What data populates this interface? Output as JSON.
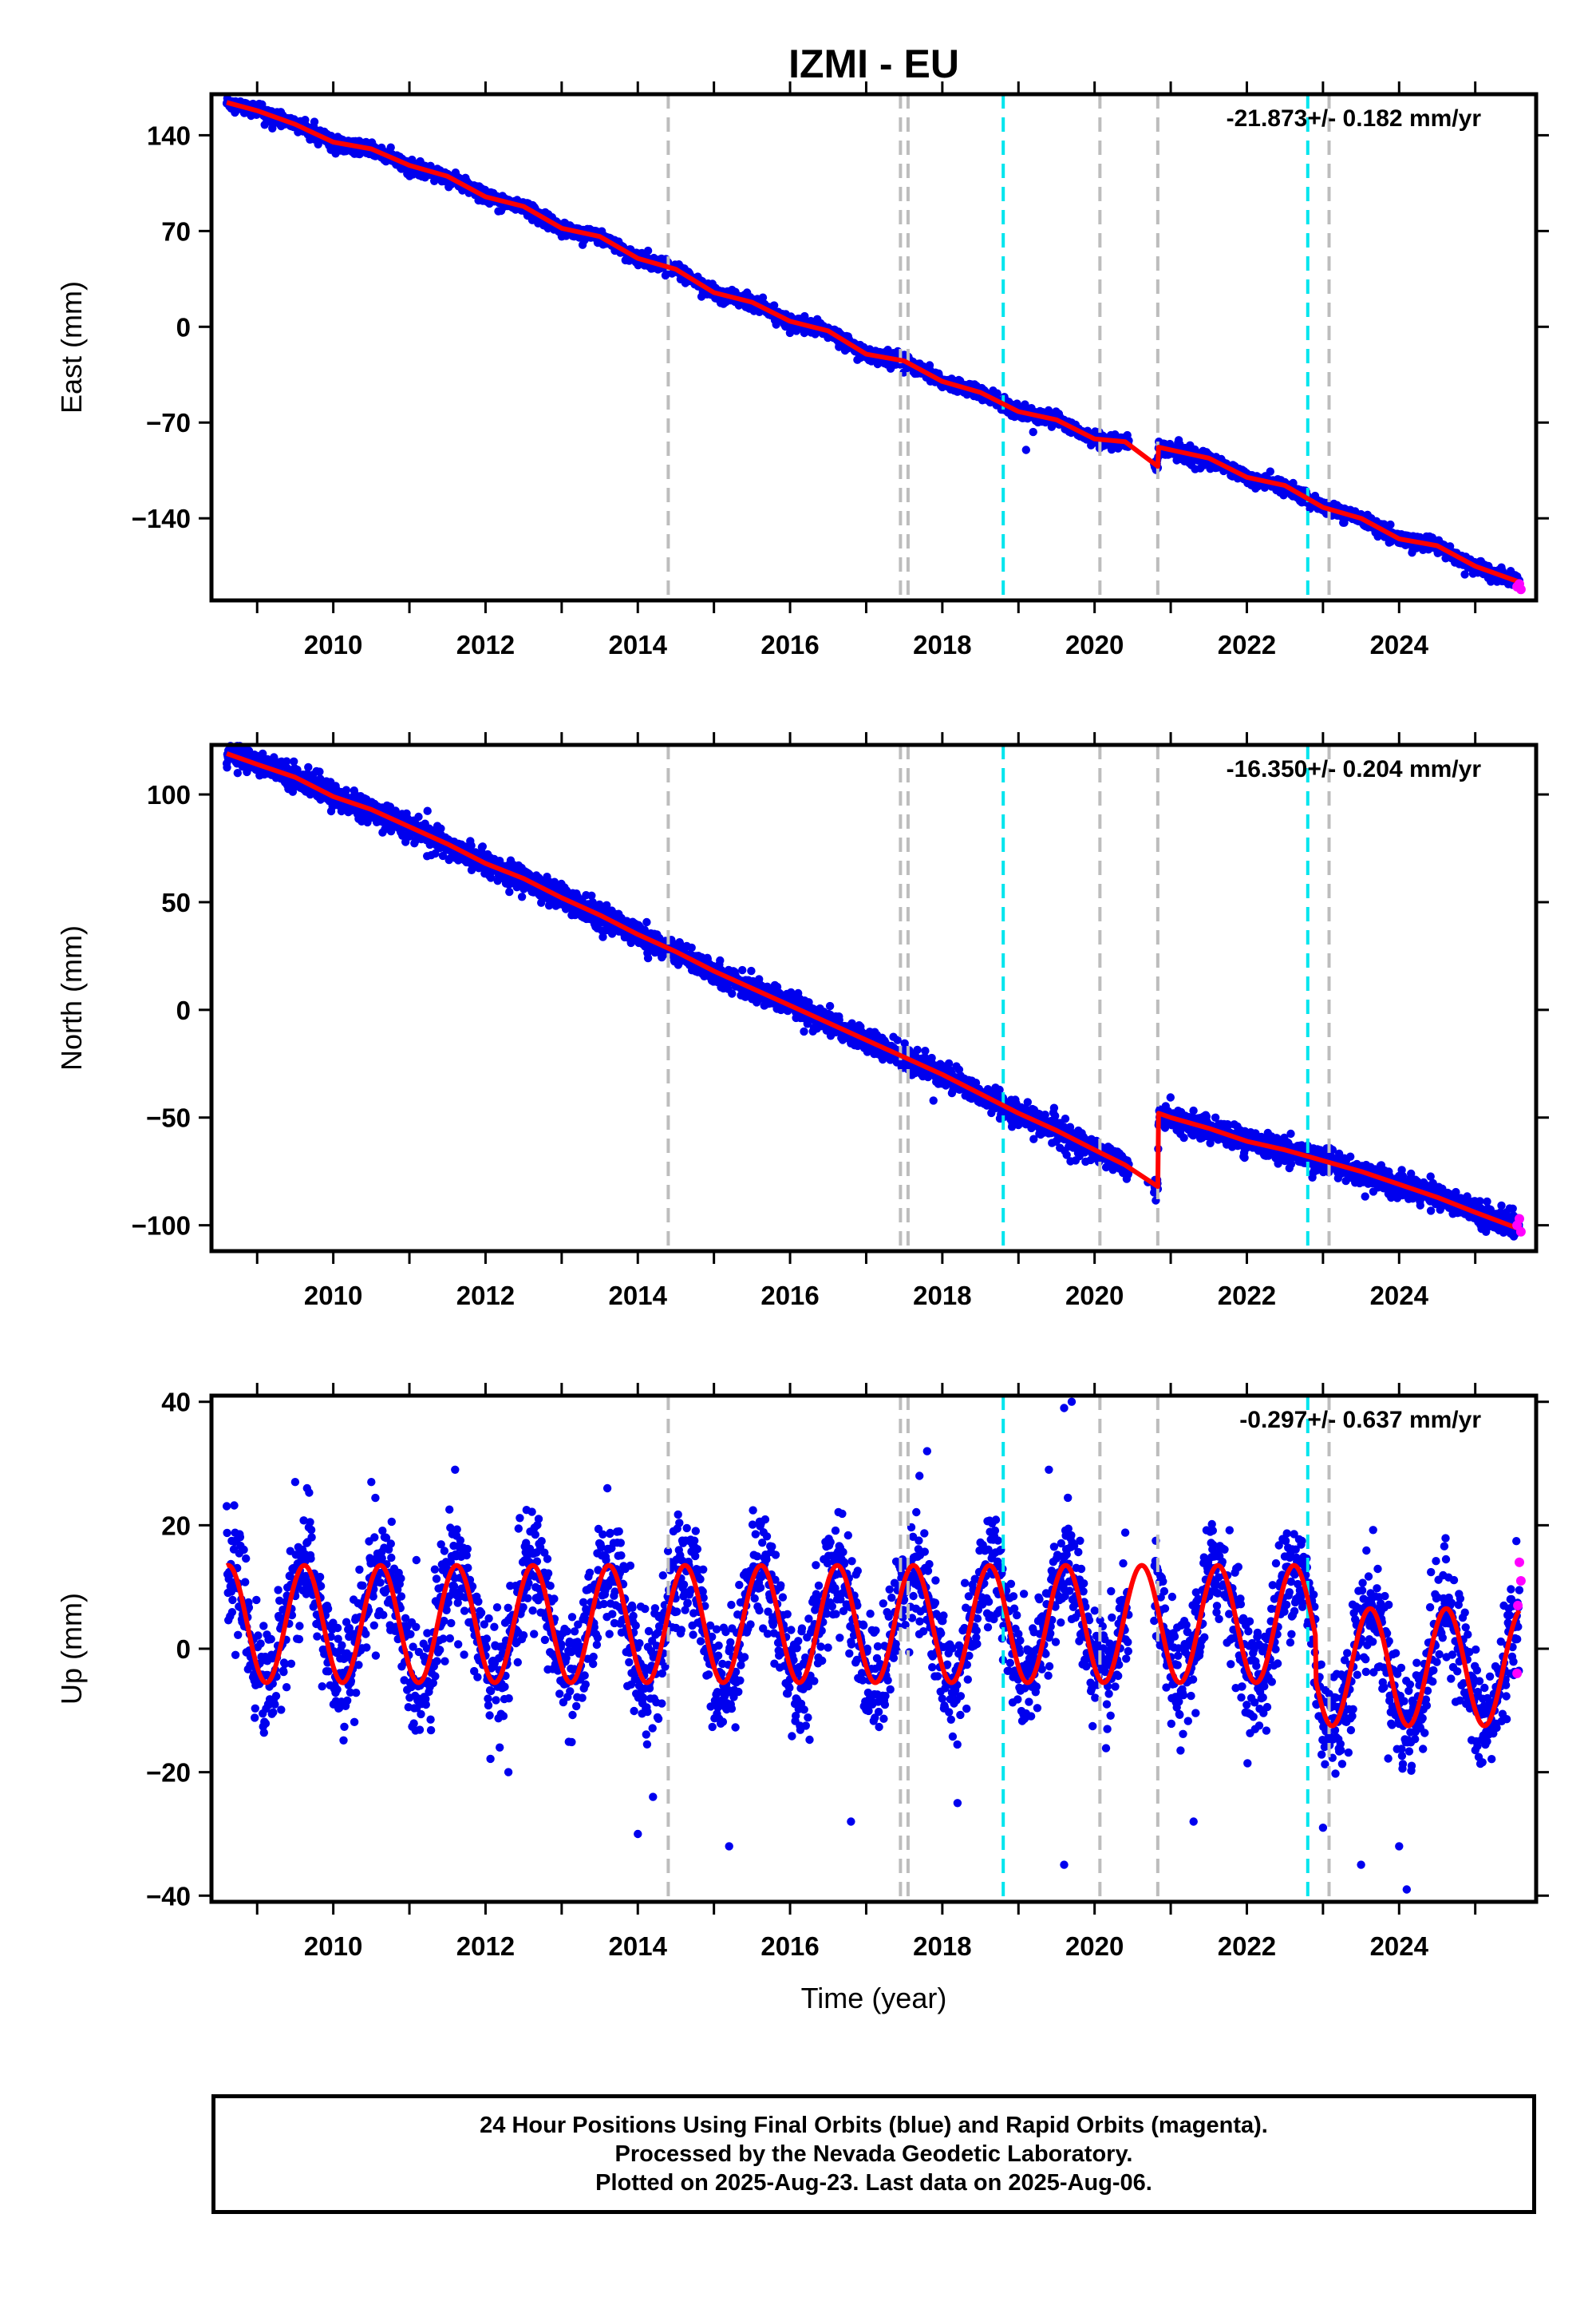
{
  "title": "IZMI - EU",
  "caption": {
    "line1": "24 Hour Positions Using Final Orbits (blue) and Rapid Orbits (magenta).",
    "line2": "Processed by the Nevada Geodetic Laboratory.",
    "line3": "Plotted on 2025-Aug-23. Last data on 2025-Aug-06."
  },
  "colors": {
    "final": "#0000ee",
    "rapid": "#ff00ff",
    "model": "#ff0000",
    "event_gray": "#bdbdbd",
    "event_cyan": "#00e5ee"
  },
  "events": {
    "gray": [
      2014.4,
      2017.45,
      2017.55,
      2020.07,
      2020.83,
      2023.08
    ],
    "cyan": [
      2018.8,
      2022.8
    ]
  },
  "chart_data": [
    {
      "type": "scatter",
      "name_key": "east",
      "ylabel": "East (mm)",
      "xlabel": "",
      "rate": "-21.873+/- 0.182 mm/yr",
      "xlim": [
        2008.4,
        2025.8
      ],
      "ylim": [
        -200,
        170
      ],
      "yticks": [
        140,
        70,
        0,
        -70,
        -140
      ],
      "xticks": [
        2010,
        2012,
        2014,
        2016,
        2018,
        2020,
        2022,
        2024
      ],
      "model": [
        [
          2008.6,
          164
        ],
        [
          2009.0,
          158
        ],
        [
          2009.5,
          148
        ],
        [
          2010.0,
          135
        ],
        [
          2010.5,
          130
        ],
        [
          2011.0,
          118
        ],
        [
          2011.5,
          110
        ],
        [
          2012.0,
          95
        ],
        [
          2012.5,
          88
        ],
        [
          2013.0,
          72
        ],
        [
          2013.5,
          66
        ],
        [
          2014.0,
          50
        ],
        [
          2014.5,
          42
        ],
        [
          2015.0,
          25
        ],
        [
          2015.5,
          18
        ],
        [
          2016.0,
          4
        ],
        [
          2016.5,
          -3
        ],
        [
          2017.0,
          -20
        ],
        [
          2017.5,
          -25
        ],
        [
          2018.0,
          -40
        ],
        [
          2018.5,
          -48
        ],
        [
          2019.0,
          -62
        ],
        [
          2019.5,
          -68
        ],
        [
          2020.0,
          -82
        ],
        [
          2020.4,
          -84
        ],
        [
          2020.83,
          -102
        ],
        [
          2020.84,
          -88
        ],
        [
          2021.0,
          -90
        ],
        [
          2021.5,
          -96
        ],
        [
          2022.0,
          -110
        ],
        [
          2022.5,
          -116
        ],
        [
          2023.0,
          -132
        ],
        [
          2023.5,
          -140
        ],
        [
          2024.0,
          -155
        ],
        [
          2024.5,
          -160
        ],
        [
          2025.0,
          -175
        ],
        [
          2025.6,
          -187
        ]
      ],
      "outliers": [
        [
          2019.1,
          -90
        ],
        [
          2009.2,
          145
        ],
        [
          2012.6,
          80
        ],
        [
          2016.7,
          -15
        ]
      ],
      "rapid": [
        [
          2025.55,
          -190
        ],
        [
          2025.58,
          -188
        ],
        [
          2025.6,
          -192
        ]
      ]
    },
    {
      "type": "scatter",
      "name_key": "north",
      "ylabel": "North (mm)",
      "xlabel": "",
      "rate": "-16.350+/- 0.204 mm/yr",
      "xlim": [
        2008.4,
        2025.8
      ],
      "ylim": [
        -112,
        123
      ],
      "yticks": [
        100,
        50,
        0,
        -50,
        -100
      ],
      "xticks": [
        2010,
        2012,
        2014,
        2016,
        2018,
        2020,
        2022,
        2024
      ],
      "model": [
        [
          2008.6,
          119
        ],
        [
          2009.0,
          114
        ],
        [
          2009.5,
          108
        ],
        [
          2010.0,
          99
        ],
        [
          2010.5,
          93
        ],
        [
          2011.0,
          85
        ],
        [
          2011.5,
          77
        ],
        [
          2012.0,
          68
        ],
        [
          2012.5,
          61
        ],
        [
          2013.0,
          52
        ],
        [
          2013.5,
          44
        ],
        [
          2014.0,
          35
        ],
        [
          2014.5,
          27
        ],
        [
          2015.0,
          18
        ],
        [
          2015.5,
          10
        ],
        [
          2016.0,
          2
        ],
        [
          2016.5,
          -6
        ],
        [
          2017.0,
          -14
        ],
        [
          2017.5,
          -22
        ],
        [
          2018.0,
          -30
        ],
        [
          2018.5,
          -39
        ],
        [
          2019.0,
          -48
        ],
        [
          2019.5,
          -56
        ],
        [
          2020.0,
          -65
        ],
        [
          2020.4,
          -72
        ],
        [
          2020.83,
          -82
        ],
        [
          2020.84,
          -48
        ],
        [
          2021.0,
          -50
        ],
        [
          2021.5,
          -55
        ],
        [
          2022.0,
          -61
        ],
        [
          2022.5,
          -65
        ],
        [
          2023.0,
          -70
        ],
        [
          2023.5,
          -75
        ],
        [
          2024.0,
          -81
        ],
        [
          2024.5,
          -87
        ],
        [
          2025.0,
          -94
        ],
        [
          2025.6,
          -102
        ]
      ],
      "outliers": [
        [
          2012.8,
          55
        ],
        [
          2015.5,
          5
        ],
        [
          2016.3,
          -10
        ],
        [
          2019.2,
          -60
        ],
        [
          2020.7,
          -80
        ]
      ],
      "rapid": [
        [
          2025.55,
          -100
        ],
        [
          2025.58,
          -97
        ],
        [
          2025.6,
          -103
        ]
      ]
    },
    {
      "type": "scatter",
      "name_key": "up",
      "ylabel": "Up (mm)",
      "xlabel": "Time (year)",
      "rate": "-0.297+/- 0.637 mm/yr",
      "xlim": [
        2008.4,
        2025.8
      ],
      "ylim": [
        -41,
        41
      ],
      "yticks": [
        40,
        20,
        0,
        -20,
        -40
      ],
      "xticks": [
        2010,
        2012,
        2014,
        2016,
        2018,
        2020,
        2022,
        2024
      ],
      "amplitude": 9.5,
      "step_year": 2022.9,
      "offset_after_step": -7,
      "outliers": [
        [
          2014.0,
          -30
        ],
        [
          2014.2,
          -24
        ],
        [
          2015.2,
          -32
        ],
        [
          2017.8,
          32
        ],
        [
          2017.7,
          28
        ],
        [
          2019.4,
          29
        ],
        [
          2019.6,
          39
        ],
        [
          2019.7,
          40
        ],
        [
          2019.6,
          -35
        ],
        [
          2021.3,
          -28
        ],
        [
          2023.5,
          -35
        ],
        [
          2024.1,
          -39
        ],
        [
          2024.0,
          -32
        ],
        [
          2013.6,
          26
        ],
        [
          2011.6,
          29
        ],
        [
          2009.5,
          27
        ],
        [
          2010.5,
          27
        ],
        [
          2016.8,
          -28
        ],
        [
          2018.2,
          -25
        ],
        [
          2012.3,
          -20
        ],
        [
          2023.0,
          -29
        ]
      ],
      "rapid": [
        [
          2025.58,
          14
        ],
        [
          2025.6,
          11
        ],
        [
          2025.56,
          7
        ],
        [
          2025.55,
          -4
        ]
      ]
    }
  ]
}
